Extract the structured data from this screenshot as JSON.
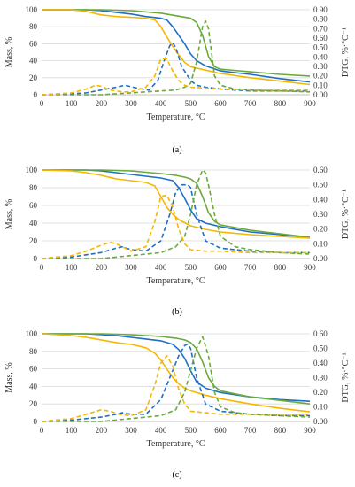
{
  "colors": {
    "blue": "#1f6fc5",
    "green": "#6aaa3a",
    "yellow": "#f5b800",
    "grid": "#d9d9d9"
  },
  "chart_data": [
    {
      "type": "line",
      "panel_label": "(a)",
      "xlabel": "Temperature, °C",
      "ylabel": "Mass, %",
      "y2label": "DTG, %·°C⁻¹",
      "xlim": [
        0,
        900
      ],
      "ylim": [
        0,
        100
      ],
      "y2lim": [
        0,
        0.9
      ],
      "xticks": [
        "0",
        "100",
        "200",
        "300",
        "400",
        "500",
        "600",
        "700",
        "800",
        "900"
      ],
      "yticks": [
        "0",
        "20",
        "40",
        "60",
        "80",
        "100"
      ],
      "y2ticks": [
        "0.00",
        "0.10",
        "0.20",
        "0.30",
        "0.40",
        "0.50",
        "0.60",
        "0.70",
        "0.80",
        "0.90"
      ],
      "series": [
        {
          "color": "blue",
          "style": "solid",
          "axis": "mass",
          "x": [
            0,
            150,
            200,
            250,
            300,
            350,
            400,
            420,
            440,
            460,
            480,
            500,
            520,
            550,
            600,
            700,
            800,
            900
          ],
          "y": [
            100,
            100,
            99,
            97,
            95,
            92,
            90,
            88,
            80,
            70,
            60,
            48,
            40,
            34,
            28,
            24,
            19,
            15
          ]
        },
        {
          "color": "green",
          "style": "solid",
          "axis": "mass",
          "x": [
            0,
            200,
            300,
            400,
            450,
            500,
            520,
            540,
            560,
            580,
            600,
            700,
            800,
            900
          ],
          "y": [
            100,
            100,
            99,
            96,
            93,
            90,
            85,
            70,
            45,
            33,
            30,
            27,
            24,
            22
          ]
        },
        {
          "color": "yellow",
          "style": "solid",
          "axis": "mass",
          "x": [
            0,
            100,
            150,
            200,
            250,
            300,
            350,
            380,
            400,
            420,
            440,
            460,
            480,
            500,
            550,
            600,
            700,
            800,
            900
          ],
          "y": [
            100,
            100,
            98,
            94,
            92,
            91,
            90,
            88,
            80,
            68,
            57,
            47,
            38,
            33,
            29,
            25,
            20,
            16,
            12
          ]
        },
        {
          "color": "blue",
          "style": "dashed",
          "axis": "dtg",
          "x": [
            0,
            100,
            150,
            200,
            250,
            280,
            320,
            360,
            390,
            410,
            430,
            440,
            450,
            470,
            500,
            520,
            550,
            600,
            650,
            700,
            800,
            900
          ],
          "y": [
            0,
            0.01,
            0.02,
            0.05,
            0.08,
            0.1,
            0.07,
            0.05,
            0.15,
            0.35,
            0.52,
            0.55,
            0.5,
            0.3,
            0.15,
            0.1,
            0.08,
            0.06,
            0.05,
            0.04,
            0.04,
            0.04
          ]
        },
        {
          "color": "green",
          "style": "dashed",
          "axis": "dtg",
          "x": [
            0,
            200,
            300,
            400,
            450,
            480,
            500,
            520,
            540,
            550,
            560,
            570,
            580,
            600,
            650,
            700,
            800,
            900
          ],
          "y": [
            0,
            0,
            0.02,
            0.04,
            0.05,
            0.08,
            0.12,
            0.35,
            0.72,
            0.78,
            0.7,
            0.45,
            0.2,
            0.1,
            0.06,
            0.05,
            0.04,
            0.03
          ]
        },
        {
          "color": "yellow",
          "style": "dashed",
          "axis": "dtg",
          "x": [
            0,
            100,
            150,
            180,
            200,
            230,
            270,
            300,
            350,
            380,
            400,
            420,
            440,
            460,
            480,
            500,
            550,
            600,
            700,
            800,
            900
          ],
          "y": [
            0,
            0.02,
            0.06,
            0.1,
            0.09,
            0.05,
            0.03,
            0.03,
            0.08,
            0.2,
            0.38,
            0.38,
            0.25,
            0.15,
            0.1,
            0.08,
            0.07,
            0.06,
            0.05,
            0.05,
            0.05
          ]
        }
      ]
    },
    {
      "type": "line",
      "panel_label": "(b)",
      "xlabel": "Temperature, °C",
      "ylabel": "Mass, %",
      "y2label": "DTG, %·°C⁻¹",
      "xlim": [
        0,
        900
      ],
      "ylim": [
        0,
        100
      ],
      "y2lim": [
        0,
        0.6
      ],
      "xticks": [
        "0",
        "100",
        "200",
        "300",
        "400",
        "500",
        "600",
        "700",
        "800",
        "900"
      ],
      "yticks": [
        "0",
        "20",
        "40",
        "60",
        "80",
        "100"
      ],
      "y2ticks": [
        "0.00",
        "0.10",
        "0.20",
        "0.30",
        "0.40",
        "0.50",
        "0.60"
      ],
      "series": [
        {
          "color": "blue",
          "style": "solid",
          "axis": "mass",
          "x": [
            0,
            150,
            200,
            250,
            300,
            350,
            400,
            440,
            460,
            480,
            500,
            520,
            550,
            600,
            700,
            800,
            900
          ],
          "y": [
            100,
            100,
            99,
            97,
            95,
            93,
            91,
            88,
            80,
            68,
            55,
            45,
            40,
            36,
            30,
            27,
            24
          ]
        },
        {
          "color": "green",
          "style": "solid",
          "axis": "mass",
          "x": [
            0,
            200,
            300,
            400,
            450,
            480,
            500,
            520,
            540,
            560,
            580,
            600,
            700,
            800,
            900
          ],
          "y": [
            100,
            100,
            99,
            96,
            94,
            92,
            90,
            85,
            70,
            52,
            42,
            38,
            32,
            28,
            24
          ]
        },
        {
          "color": "yellow",
          "style": "solid",
          "axis": "mass",
          "x": [
            0,
            100,
            150,
            200,
            250,
            300,
            350,
            380,
            400,
            420,
            440,
            460,
            500,
            550,
            600,
            700,
            800,
            900
          ],
          "y": [
            100,
            99,
            97,
            94,
            90,
            88,
            86,
            82,
            70,
            58,
            50,
            44,
            37,
            33,
            30,
            27,
            25,
            23
          ]
        },
        {
          "color": "blue",
          "style": "dashed",
          "axis": "dtg",
          "x": [
            0,
            100,
            200,
            250,
            270,
            300,
            350,
            400,
            430,
            450,
            470,
            490,
            500,
            520,
            550,
            600,
            700,
            800,
            900
          ],
          "y": [
            0,
            0.01,
            0.04,
            0.07,
            0.08,
            0.06,
            0.05,
            0.12,
            0.3,
            0.45,
            0.5,
            0.5,
            0.48,
            0.3,
            0.12,
            0.07,
            0.05,
            0.04,
            0.04
          ]
        },
        {
          "color": "green",
          "style": "dashed",
          "axis": "dtg",
          "x": [
            0,
            200,
            300,
            400,
            450,
            480,
            500,
            520,
            540,
            550,
            560,
            580,
            600,
            650,
            700,
            800,
            900
          ],
          "y": [
            0,
            0,
            0.02,
            0.04,
            0.08,
            0.15,
            0.3,
            0.5,
            0.6,
            0.58,
            0.5,
            0.3,
            0.15,
            0.08,
            0.06,
            0.04,
            0.03
          ]
        },
        {
          "color": "yellow",
          "style": "dashed",
          "axis": "dtg",
          "x": [
            0,
            100,
            150,
            200,
            230,
            250,
            280,
            300,
            350,
            380,
            400,
            420,
            440,
            460,
            480,
            500,
            550,
            600,
            700,
            800,
            900
          ],
          "y": [
            0,
            0.02,
            0.05,
            0.09,
            0.11,
            0.1,
            0.07,
            0.05,
            0.08,
            0.25,
            0.42,
            0.43,
            0.35,
            0.2,
            0.1,
            0.06,
            0.05,
            0.05,
            0.04,
            0.04,
            0.04
          ]
        }
      ]
    },
    {
      "type": "line",
      "panel_label": "(c)",
      "xlabel": "Temperature, °C",
      "ylabel": "Mass, %",
      "y2label": "DTG, %·°C⁻¹",
      "xlim": [
        0,
        900
      ],
      "ylim": [
        0,
        100
      ],
      "y2lim": [
        0,
        0.6
      ],
      "xticks": [
        "0",
        "100",
        "200",
        "300",
        "400",
        "500",
        "600",
        "700",
        "800",
        "900"
      ],
      "yticks": [
        "0",
        "20",
        "40",
        "60",
        "80",
        "100"
      ],
      "y2ticks": [
        "0.00",
        "0.10",
        "0.20",
        "0.30",
        "0.40",
        "0.50",
        "0.60"
      ],
      "series": [
        {
          "color": "blue",
          "style": "solid",
          "axis": "mass",
          "x": [
            0,
            150,
            200,
            250,
            300,
            350,
            400,
            440,
            460,
            480,
            500,
            520,
            550,
            600,
            700,
            800,
            900
          ],
          "y": [
            100,
            100,
            99,
            98,
            96,
            94,
            92,
            88,
            82,
            72,
            58,
            45,
            38,
            33,
            28,
            25,
            23
          ]
        },
        {
          "color": "green",
          "style": "solid",
          "axis": "mass",
          "x": [
            0,
            200,
            300,
            400,
            450,
            480,
            500,
            520,
            540,
            560,
            580,
            600,
            700,
            800,
            900
          ],
          "y": [
            100,
            100,
            99,
            97,
            95,
            93,
            90,
            83,
            68,
            50,
            40,
            35,
            28,
            24,
            20
          ]
        },
        {
          "color": "yellow",
          "style": "solid",
          "axis": "mass",
          "x": [
            0,
            100,
            150,
            200,
            250,
            300,
            350,
            380,
            400,
            420,
            440,
            460,
            480,
            500,
            550,
            600,
            700,
            800,
            900
          ],
          "y": [
            100,
            98,
            96,
            93,
            90,
            88,
            84,
            78,
            70,
            60,
            50,
            43,
            38,
            35,
            30,
            26,
            20,
            15,
            11
          ]
        },
        {
          "color": "blue",
          "style": "dashed",
          "axis": "dtg",
          "x": [
            0,
            100,
            200,
            250,
            270,
            300,
            350,
            400,
            440,
            460,
            480,
            490,
            500,
            520,
            550,
            600,
            700,
            800,
            900
          ],
          "y": [
            0,
            0.01,
            0.03,
            0.05,
            0.06,
            0.05,
            0.05,
            0.15,
            0.35,
            0.45,
            0.52,
            0.53,
            0.5,
            0.3,
            0.12,
            0.07,
            0.05,
            0.04,
            0.04
          ]
        },
        {
          "color": "green",
          "style": "dashed",
          "axis": "dtg",
          "x": [
            0,
            200,
            300,
            400,
            450,
            480,
            500,
            520,
            540,
            560,
            580,
            600,
            650,
            700,
            800,
            900
          ],
          "y": [
            0,
            0,
            0.02,
            0.04,
            0.08,
            0.2,
            0.35,
            0.5,
            0.58,
            0.45,
            0.2,
            0.1,
            0.06,
            0.05,
            0.04,
            0.03
          ]
        },
        {
          "color": "yellow",
          "style": "dashed",
          "axis": "dtg",
          "x": [
            0,
            100,
            150,
            200,
            230,
            260,
            300,
            350,
            380,
            400,
            420,
            440,
            460,
            480,
            500,
            550,
            600,
            700,
            800,
            900
          ],
          "y": [
            0,
            0.02,
            0.05,
            0.08,
            0.07,
            0.05,
            0.04,
            0.08,
            0.25,
            0.4,
            0.45,
            0.38,
            0.22,
            0.12,
            0.07,
            0.06,
            0.05,
            0.05,
            0.05,
            0.05
          ]
        }
      ]
    }
  ]
}
